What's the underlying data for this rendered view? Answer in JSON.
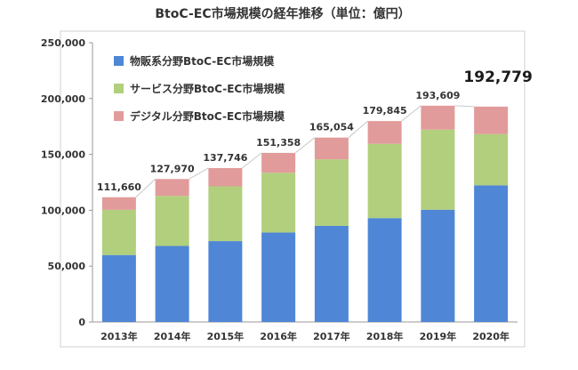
{
  "chart_data": {
    "type": "bar",
    "stacked": true,
    "title": "BtoC-EC市場規模の経年推移（単位：億円）",
    "categories": [
      "2013年",
      "2014年",
      "2015年",
      "2016年",
      "2017年",
      "2018年",
      "2019年",
      "2020年"
    ],
    "series": [
      {
        "name": "物販系分野BtoC-EC市場規模",
        "color": "#4f86d6",
        "values": [
          59931,
          68043,
          72398,
          80043,
          86008,
          92992,
          100515,
          122333
        ]
      },
      {
        "name": "サービス分野BtoC-EC市場規模",
        "color": "#b1cf7c",
        "values": [
          40493,
          44816,
          49014,
          53532,
          59568,
          66471,
          71672,
          45832
        ]
      },
      {
        "name": "デジタル分野BtoC-EC市場規模",
        "color": "#e19b9b",
        "values": [
          11236,
          15111,
          16334,
          17782,
          19478,
          20382,
          21422,
          24614
        ]
      }
    ],
    "totals": [
      "111,660",
      "127,970",
      "137,746",
      "151,358",
      "165,054",
      "179,845",
      "193,609",
      "192,779"
    ],
    "totals_values": [
      111660,
      127970,
      137746,
      151358,
      165054,
      179845,
      193609,
      192779
    ],
    "highlight_total_index": 7,
    "ylim": [
      0,
      250000
    ],
    "y_ticks": [
      "0",
      "50,000",
      "100,000",
      "150,000",
      "200,000",
      "250,000"
    ],
    "y_tick_values": [
      0,
      50000,
      100000,
      150000,
      200000,
      250000
    ],
    "grid": false,
    "legend": "top-left",
    "total_connector_lines": true
  }
}
